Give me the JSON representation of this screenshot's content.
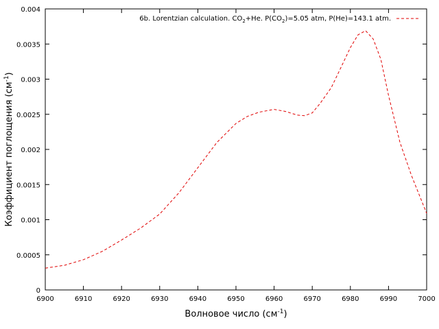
{
  "chart_data": {
    "type": "line",
    "xlabel": "Волновое число (см",
    "xlabel_sup": "-1",
    "xlabel_end": ")",
    "ylabel": "Коэффициент поглощения (см",
    "ylabel_sup": "-1",
    "ylabel_end": ")",
    "xlim": [
      6900,
      7000
    ],
    "ylim": [
      0,
      0.004
    ],
    "x_ticks": [
      "6900",
      "6910",
      "6920",
      "6930",
      "6940",
      "6950",
      "6960",
      "6970",
      "6980",
      "6990",
      "7000"
    ],
    "y_ticks": [
      "0",
      "0.0005",
      "0.001",
      "0.0015",
      "0.002",
      "0.0025",
      "0.003",
      "0.0035",
      "0.004"
    ],
    "grid": false,
    "legend_position": "top-right",
    "series": [
      {
        "name_parts": [
          "6b. Lorentzian calculation. CO",
          "2",
          "+He. P(CO",
          "2",
          ")=5.05 atm, P(He)=143.1 atm."
        ],
        "color": "#e00000",
        "line_style": "dashed",
        "x": [
          6900,
          6905,
          6910,
          6915,
          6920,
          6925,
          6930,
          6935,
          6940,
          6945,
          6950,
          6953,
          6956,
          6960,
          6963,
          6966,
          6968,
          6970,
          6972,
          6975,
          6978,
          6980,
          6982,
          6984,
          6986,
          6988,
          6990,
          6993,
          6996,
          7000
        ],
        "y": [
          0.00031,
          0.00035,
          0.00043,
          0.00055,
          0.00071,
          0.00088,
          0.00108,
          0.00138,
          0.00174,
          0.0021,
          0.00237,
          0.00247,
          0.00253,
          0.00257,
          0.00254,
          0.00249,
          0.00248,
          0.00252,
          0.00265,
          0.00288,
          0.00322,
          0.00345,
          0.00363,
          0.00369,
          0.00357,
          0.00328,
          0.00277,
          0.0021,
          0.00163,
          0.00109
        ]
      }
    ]
  }
}
